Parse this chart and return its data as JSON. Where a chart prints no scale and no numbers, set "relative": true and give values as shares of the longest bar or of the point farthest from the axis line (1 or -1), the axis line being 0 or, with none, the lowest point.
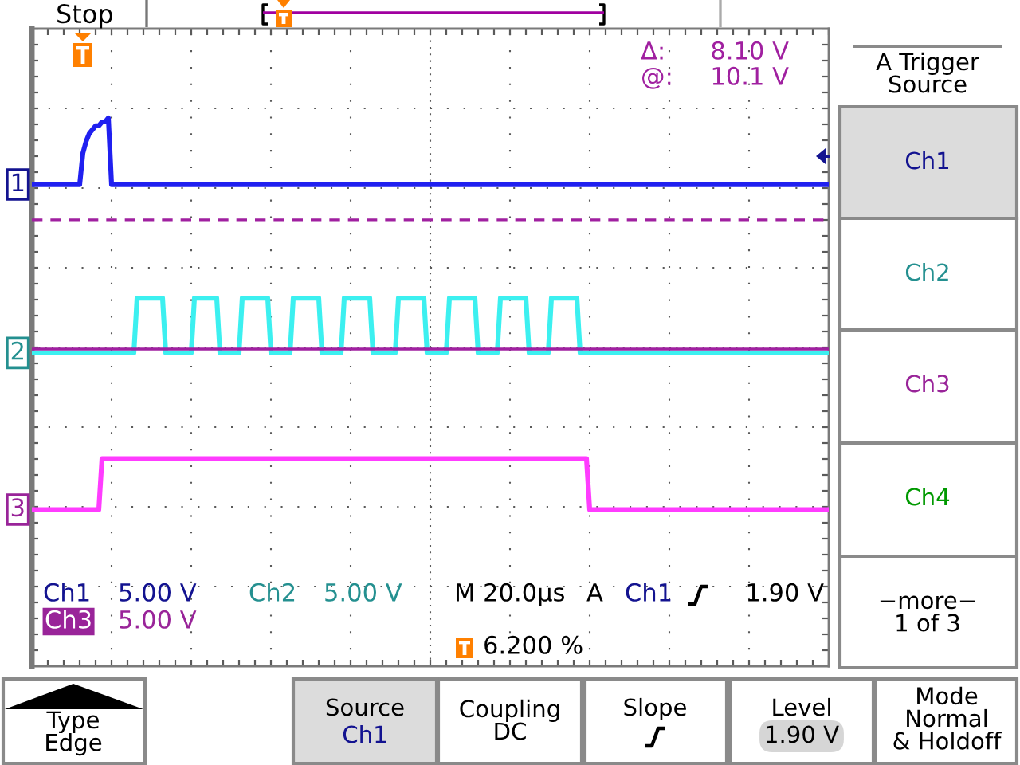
{
  "chart_data": {
    "type": "line",
    "relative": true,
    "grid": true,
    "categories": [
      null,
      null,
      null,
      null,
      null,
      null,
      null,
      null,
      null,
      null,
      null,
      null,
      null,
      null,
      null,
      null,
      null,
      null,
      null,
      null,
      null,
      null,
      null,
      null,
      null,
      null,
      null,
      null,
      null,
      null,
      null,
      null,
      null,
      null,
      null,
      null,
      null,
      null,
      null,
      null,
      null,
      null,
      null,
      null,
      null,
      null,
      null,
      null,
      null,
      null,
      null,
      null,
      null,
      null,
      null,
      null,
      null,
      null,
      null,
      null,
      null,
      null,
      null,
      null,
      null,
      null,
      null,
      null,
      null,
      null,
      null,
      null,
      null,
      null,
      null,
      null,
      null,
      null,
      null,
      null,
      null,
      null,
      null,
      null,
      null,
      null,
      null,
      null,
      null,
      null,
      null,
      null,
      null,
      null,
      null,
      null,
      null,
      null,
      null,
      null,
      null,
      null,
      null,
      null,
      null,
      null,
      null,
      null,
      null,
      null,
      null,
      null,
      null,
      null,
      null,
      null,
      null,
      null,
      null,
      null,
      null,
      null,
      null,
      null,
      null,
      null,
      null,
      null,
      null,
      null,
      null,
      null,
      null,
      null,
      null,
      null,
      null,
      null,
      null,
      null,
      null,
      null,
      null,
      null,
      null,
      null,
      null,
      null,
      null,
      null,
      null,
      null,
      null,
      null,
      null,
      null,
      null,
      null,
      null,
      null,
      null,
      null,
      null,
      null,
      null,
      null,
      null,
      null,
      null,
      null,
      null,
      null,
      null,
      null,
      null,
      null,
      null,
      null,
      null,
      null,
      null,
      null,
      null,
      null,
      null,
      null,
      null,
      null,
      null,
      null,
      null,
      null,
      null,
      null,
      null,
      null,
      null,
      null,
      null,
      null,
      null,
      null,
      null,
      null,
      null,
      null,
      null,
      null,
      null,
      null,
      null,
      null,
      null,
      null,
      null,
      null,
      null,
      null,
      null,
      null,
      null,
      null,
      null,
      null,
      null,
      null,
      null,
      null,
      null,
      null,
      null,
      null,
      null,
      null,
      null,
      null,
      null,
      null,
      null,
      null,
      null,
      null,
      null,
      null,
      null,
      null,
      null,
      null,
      null,
      null,
      null
    ],
    "series": [
      {
        "name": "1",
        "color": "#2020f0",
        "values": [
          0.83,
          0.83,
          0.83,
          0.83,
          0.83,
          0.83,
          0.83,
          0.83,
          0.83,
          0.83,
          0.83,
          0.83,
          0.83,
          0.83,
          0.83,
          0.83,
          0.91,
          0.94,
          0.96,
          0.97,
          0.98,
          0.98,
          0.99,
          0.99,
          1.0,
          0.83,
          0.83,
          0.83,
          0.83,
          0.83,
          0.83,
          0.83,
          0.83,
          0.83,
          0.83,
          0.83,
          0.83,
          0.83,
          0.83,
          0.83,
          0.83,
          0.83,
          0.83,
          0.83,
          0.83,
          0.83,
          0.83,
          0.83,
          0.83,
          0.83,
          0.83,
          0.83,
          0.83,
          0.83,
          0.83,
          0.83,
          0.83,
          0.83,
          0.83,
          0.83,
          0.83,
          0.83,
          0.83,
          0.83,
          0.83,
          0.83,
          0.83,
          0.83,
          0.83,
          0.83,
          0.83,
          0.83,
          0.83,
          0.83,
          0.83,
          0.83,
          0.83,
          0.83,
          0.83,
          0.83,
          0.83,
          0.83,
          0.83,
          0.83,
          0.83,
          0.83,
          0.83,
          0.83,
          0.83,
          0.83,
          0.83,
          0.83,
          0.83,
          0.83,
          0.83,
          0.83,
          0.83,
          0.83,
          0.83,
          0.83,
          0.83,
          0.83,
          0.83,
          0.83,
          0.83,
          0.83,
          0.83,
          0.83,
          0.83,
          0.83,
          0.83,
          0.83,
          0.83,
          0.83,
          0.83,
          0.83,
          0.83,
          0.83,
          0.83,
          0.83,
          0.83,
          0.83,
          0.83,
          0.83,
          0.83,
          0.83,
          0.83,
          0.83,
          0.83,
          0.83,
          0.83,
          0.83,
          0.83,
          0.83,
          0.83,
          0.83,
          0.83,
          0.83,
          0.83,
          0.83,
          0.83,
          0.83,
          0.83,
          0.83,
          0.83,
          0.83,
          0.83,
          0.83,
          0.83,
          0.83,
          0.83,
          0.83,
          0.83,
          0.83,
          0.83,
          0.83,
          0.83,
          0.83,
          0.83,
          0.83,
          0.83,
          0.83,
          0.83,
          0.83,
          0.83,
          0.83,
          0.83,
          0.83,
          0.83,
          0.83,
          0.83,
          0.83,
          0.83,
          0.83,
          0.83,
          0.83,
          0.83,
          0.83,
          0.83,
          0.83,
          0.83,
          0.83,
          0.83,
          0.83,
          0.83,
          0.83,
          0.83,
          0.83,
          0.83,
          0.83,
          0.83,
          0.83,
          0.83,
          0.83,
          0.83,
          0.83,
          0.83,
          0.83,
          0.83,
          0.83,
          0.83,
          0.83,
          0.83,
          0.83,
          0.83,
          0.83,
          0.83,
          0.83,
          0.83,
          0.83,
          0.83,
          0.83,
          0.83,
          0.83,
          0.83,
          0.83,
          0.83,
          0.83,
          0.83,
          0.83,
          0.83,
          0.83,
          0.83,
          0.83,
          0.83,
          0.83,
          0.83,
          0.83,
          0.83,
          0.83,
          0.83,
          0.83,
          0.83,
          0.83,
          0.83,
          0.83,
          0.83,
          0.83,
          0.83,
          0.83,
          0.83,
          0.83,
          0.83,
          0.83,
          0.83,
          0.83,
          0.83,
          0.83,
          0.83,
          0.83,
          0.83
        ]
      },
      {
        "name": "2",
        "color": "#3cf0f0",
        "values": [
          0.4,
          0.4,
          0.4,
          0.4,
          0.4,
          0.4,
          0.4,
          0.4,
          0.4,
          0.4,
          0.4,
          0.4,
          0.4,
          0.4,
          0.4,
          0.4,
          0.4,
          0.4,
          0.4,
          0.4,
          0.4,
          0.4,
          0.4,
          0.4,
          0.4,
          0.4,
          0.4,
          0.4,
          0.4,
          0.4,
          0.4,
          0.4,
          0.4,
          0.54,
          0.54,
          0.54,
          0.54,
          0.54,
          0.54,
          0.54,
          0.54,
          0.54,
          0.4,
          0.4,
          0.4,
          0.4,
          0.4,
          0.4,
          0.4,
          0.4,
          0.4,
          0.54,
          0.54,
          0.54,
          0.54,
          0.54,
          0.54,
          0.54,
          0.54,
          0.4,
          0.4,
          0.4,
          0.4,
          0.4,
          0.4,
          0.4,
          0.54,
          0.54,
          0.54,
          0.54,
          0.54,
          0.54,
          0.54,
          0.54,
          0.54,
          0.4,
          0.4,
          0.4,
          0.4,
          0.4,
          0.4,
          0.4,
          0.54,
          0.54,
          0.54,
          0.54,
          0.54,
          0.54,
          0.54,
          0.54,
          0.54,
          0.4,
          0.4,
          0.4,
          0.4,
          0.4,
          0.4,
          0.4,
          0.54,
          0.54,
          0.54,
          0.54,
          0.54,
          0.54,
          0.54,
          0.54,
          0.54,
          0.4,
          0.4,
          0.4,
          0.4,
          0.4,
          0.4,
          0.4,
          0.4,
          0.54,
          0.54,
          0.54,
          0.54,
          0.54,
          0.54,
          0.54,
          0.54,
          0.54,
          0.4,
          0.4,
          0.4,
          0.4,
          0.4,
          0.4,
          0.4,
          0.54,
          0.54,
          0.54,
          0.54,
          0.54,
          0.54,
          0.54,
          0.54,
          0.54,
          0.4,
          0.4,
          0.4,
          0.4,
          0.4,
          0.4,
          0.4,
          0.54,
          0.54,
          0.54,
          0.54,
          0.54,
          0.54,
          0.54,
          0.54,
          0.54,
          0.4,
          0.4,
          0.4,
          0.4,
          0.4,
          0.4,
          0.4,
          0.54,
          0.54,
          0.54,
          0.54,
          0.54,
          0.54,
          0.54,
          0.54,
          0.54,
          0.4,
          0.4,
          0.4,
          0.4,
          0.4,
          0.4,
          0.4,
          0.4,
          0.4,
          0.4,
          0.4,
          0.4,
          0.4,
          0.4,
          0.4,
          0.4,
          0.4,
          0.4,
          0.4,
          0.4,
          0.4,
          0.4,
          0.4,
          0.4,
          0.4,
          0.4,
          0.4,
          0.4,
          0.4,
          0.4,
          0.4,
          0.4,
          0.4,
          0.4,
          0.4,
          0.4,
          0.4,
          0.4,
          0.4,
          0.4,
          0.4,
          0.4,
          0.4,
          0.4,
          0.4,
          0.4,
          0.4,
          0.4,
          0.4,
          0.4,
          0.4,
          0.4,
          0.4,
          0.4,
          0.4,
          0.4,
          0.4,
          0.4,
          0.4,
          0.4,
          0.4,
          0.4,
          0.4,
          0.4,
          0.4,
          0.4,
          0.4,
          0.4,
          0.4,
          0.4,
          0.4,
          0.4,
          0.4,
          0.4,
          0.4,
          0.4,
          0.4,
          0.4,
          0.4
        ]
      },
      {
        "name": "3",
        "color": "#ff3cff",
        "values": [
          0,
          0,
          0,
          0,
          0,
          0,
          0,
          0,
          0,
          0,
          0,
          0,
          0,
          0,
          0,
          0,
          0,
          0,
          0,
          0,
          0,
          0,
          0.13,
          0.13,
          0.13,
          0.13,
          0.13,
          0.13,
          0.13,
          0.13,
          0.13,
          0.13,
          0.13,
          0.13,
          0.13,
          0.13,
          0.13,
          0.13,
          0.13,
          0.13,
          0.13,
          0.13,
          0.13,
          0.13,
          0.13,
          0.13,
          0.13,
          0.13,
          0.13,
          0.13,
          0.13,
          0.13,
          0.13,
          0.13,
          0.13,
          0.13,
          0.13,
          0.13,
          0.13,
          0.13,
          0.13,
          0.13,
          0.13,
          0.13,
          0.13,
          0.13,
          0.13,
          0.13,
          0.13,
          0.13,
          0.13,
          0.13,
          0.13,
          0.13,
          0.13,
          0.13,
          0.13,
          0.13,
          0.13,
          0.13,
          0.13,
          0.13,
          0.13,
          0.13,
          0.13,
          0.13,
          0.13,
          0.13,
          0.13,
          0.13,
          0.13,
          0.13,
          0.13,
          0.13,
          0.13,
          0.13,
          0.13,
          0.13,
          0.13,
          0.13,
          0.13,
          0.13,
          0.13,
          0.13,
          0.13,
          0.13,
          0.13,
          0.13,
          0.13,
          0.13,
          0.13,
          0.13,
          0.13,
          0.13,
          0.13,
          0.13,
          0.13,
          0.13,
          0.13,
          0.13,
          0.13,
          0.13,
          0.13,
          0.13,
          0.13,
          0.13,
          0.13,
          0.13,
          0.13,
          0.13,
          0.13,
          0.13,
          0.13,
          0.13,
          0.13,
          0.13,
          0.13,
          0.13,
          0.13,
          0.13,
          0.13,
          0.13,
          0.13,
          0.13,
          0.13,
          0.13,
          0.13,
          0.13,
          0.13,
          0.13,
          0.13,
          0.13,
          0.13,
          0.13,
          0.13,
          0.13,
          0.13,
          0.13,
          0.13,
          0.13,
          0.13,
          0.13,
          0.13,
          0.13,
          0.13,
          0.13,
          0.13,
          0.13,
          0.13,
          0.13,
          0.13,
          0.13,
          0.13,
          0.13,
          0.13,
          0,
          0,
          0,
          0,
          0,
          0,
          0,
          0,
          0,
          0,
          0,
          0,
          0,
          0,
          0,
          0,
          0,
          0,
          0,
          0,
          0,
          0,
          0,
          0,
          0,
          0,
          0,
          0,
          0,
          0,
          0,
          0,
          0,
          0,
          0,
          0,
          0,
          0,
          0,
          0,
          0,
          0,
          0,
          0,
          0,
          0,
          0,
          0,
          0,
          0,
          0,
          0,
          0,
          0,
          0,
          0,
          0,
          0,
          0,
          0,
          0,
          0,
          0,
          0,
          0,
          0,
          0,
          0,
          0,
          0,
          0,
          0,
          0,
          0,
          0,
          0
        ]
      }
    ],
    "ref_lines": [
      {
        "axis": "y",
        "value": 0.74,
        "color": "#a020a0",
        "line_style": "dashed"
      },
      {
        "axis": "y",
        "value": 0.41,
        "color": "#a020a0",
        "line_style": "solid"
      }
    ],
    "annotations": [
      "Stop",
      "Δ:",
      "8.10 V",
      "@:",
      "10.1 V",
      "Ch1",
      "5.00 V",
      "Ch2",
      "5.00 V",
      "M 20.0µs",
      "A",
      "Ch1",
      "1.90 V",
      "Ch3",
      "5.00 V",
      "6.200 %",
      "A Trigger\nSource",
      "Ch1",
      "Ch2",
      "Ch3",
      "Ch4",
      "−more−\n1 of 3",
      "Type\nEdge",
      "Source",
      "Ch1",
      "Coupling\nDC",
      "Slope",
      "Level",
      "1.90 V",
      "Mode\nNormal\n& Holdoff"
    ]
  }
}
